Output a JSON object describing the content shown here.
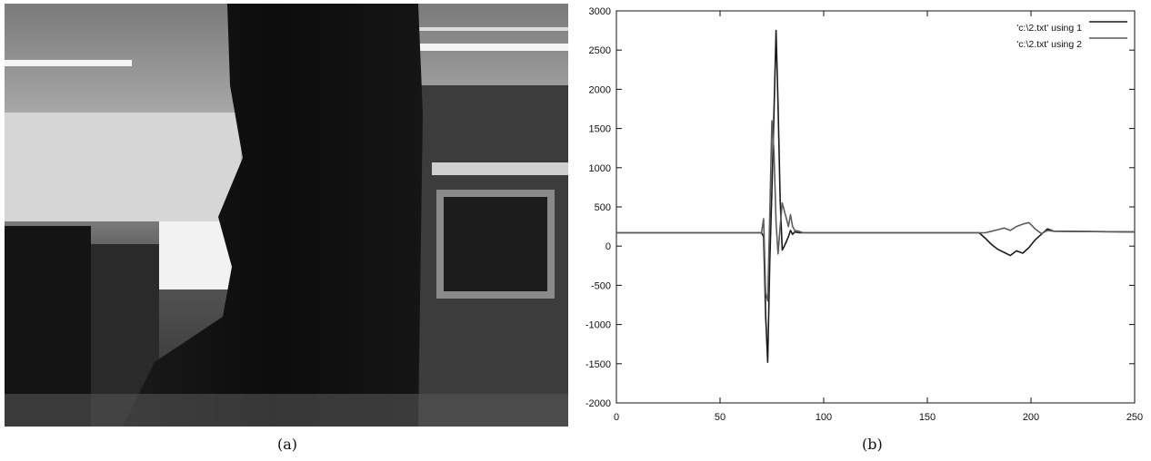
{
  "figure": {
    "caption_a": "(a)",
    "caption_b": "(b)"
  },
  "photo": {
    "icon": "office-scene-photo",
    "colors": {
      "dark": "#111111",
      "mid": "#4a4a4a",
      "light": "#e8e8e8"
    }
  },
  "chart_data": {
    "type": "line",
    "title": "",
    "xlabel": "",
    "ylabel": "",
    "xlim": [
      0,
      250
    ],
    "ylim": [
      -2000,
      3000
    ],
    "xticks": [
      0,
      50,
      100,
      150,
      200,
      250
    ],
    "yticks": [
      -2000,
      -1500,
      -1000,
      -500,
      0,
      500,
      1000,
      1500,
      2000,
      2500,
      3000
    ],
    "grid": false,
    "legend_position": "top-right",
    "series": [
      {
        "name": "'c:\\2.txt' using 1",
        "color": "#1a1a1a",
        "x": [
          0,
          70,
          71,
          72,
          73,
          74,
          75,
          76,
          77,
          78,
          79,
          80,
          81,
          82,
          83,
          84,
          85,
          86,
          88,
          90,
          175,
          178,
          181,
          184,
          187,
          190,
          193,
          196,
          199,
          202,
          205,
          208,
          211,
          250
        ],
        "y": [
          170,
          170,
          120,
          -900,
          -1480,
          -200,
          700,
          1700,
          2750,
          1800,
          600,
          -50,
          0,
          60,
          120,
          200,
          150,
          180,
          170,
          170,
          170,
          100,
          20,
          -40,
          -80,
          -120,
          -60,
          -90,
          -20,
          80,
          150,
          220,
          190,
          180
        ]
      },
      {
        "name": "'c:\\2.txt' using 2",
        "color": "#5c5c5c",
        "x": [
          0,
          70,
          71,
          72,
          73,
          74,
          75,
          76,
          77,
          78,
          79,
          80,
          81,
          82,
          83,
          84,
          85,
          86,
          88,
          90,
          175,
          178,
          181,
          184,
          187,
          190,
          193,
          196,
          199,
          202,
          205,
          208,
          211,
          250
        ],
        "y": [
          170,
          170,
          350,
          -600,
          -700,
          400,
          1600,
          1200,
          300,
          -100,
          250,
          550,
          450,
          350,
          250,
          400,
          250,
          200,
          190,
          170,
          170,
          170,
          190,
          210,
          230,
          200,
          250,
          280,
          300,
          220,
          160,
          200,
          190,
          180
        ]
      }
    ]
  }
}
